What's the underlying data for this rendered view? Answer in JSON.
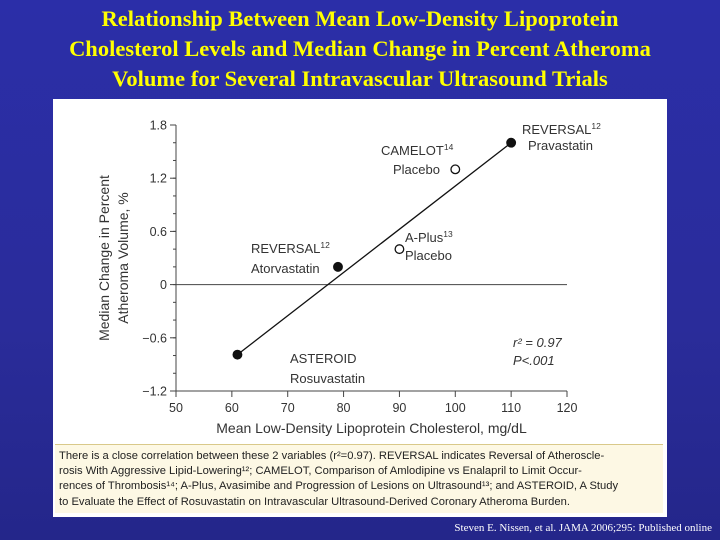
{
  "slide": {
    "title_lines": [
      "Relationship Between Mean Low-Density Lipoprotein",
      "Cholesterol Levels and Median Change in Percent Atheroma",
      "Volume for Several Intravascular Ultrasound Trials"
    ],
    "citation": "Steven E. Nissen, et al. JAMA 2006;295: Published online",
    "caption_lines": [
      "There is a close correlation between these 2 variables (r²=0.97). REVERSAL indicates Reversal of Atheroscle-",
      "rosis With Aggressive Lipid-Lowering¹²; CAMELOT, Comparison of Amlodipine vs Enalapril to Limit Occur-",
      "rences of Thrombosis¹⁴; A-Plus, Avasimibe and Progression of Lesions on Ultrasound¹³; and ASTEROID, A Study",
      "to Evaluate the Effect of Rosuvastatin on Intravascular Ultrasound-Derived Coronary Atheroma Burden."
    ]
  },
  "chart_data": {
    "type": "scatter",
    "xlabel": "Mean Low-Density Lipoprotein Cholesterol, mg/dL",
    "ylabel_lines": [
      "Median Change in Percent",
      "Atheroma Volume, %"
    ],
    "xlim": [
      50,
      120
    ],
    "ylim": [
      -1.2,
      1.8
    ],
    "xticks": [
      50,
      60,
      70,
      80,
      90,
      100,
      110,
      120
    ],
    "yticks": [
      1.8,
      1.2,
      0.6,
      0,
      -0.6,
      -1.2
    ],
    "ytick_labels": [
      "1.8",
      "1.2",
      "0.6",
      "0",
      "−0.6",
      "−1.2"
    ],
    "grid": false,
    "points": [
      {
        "name": "ASTEROID",
        "sup": "",
        "sub": "Rosuvastatin",
        "x": 61,
        "y": -0.79,
        "filled": true
      },
      {
        "name": "REVERSAL",
        "sup": "12",
        "sub": "Atorvastatin",
        "x": 79,
        "y": 0.2,
        "filled": true
      },
      {
        "name": "A-Plus",
        "sup": "13",
        "sub": "Placebo",
        "x": 90,
        "y": 0.4,
        "filled": false
      },
      {
        "name": "CAMELOT",
        "sup": "14",
        "sub": "Placebo",
        "x": 100,
        "y": 1.3,
        "filled": false
      },
      {
        "name": "REVERSAL",
        "sup": "12",
        "sub": "Pravastatin",
        "x": 110,
        "y": 1.6,
        "filled": true
      }
    ],
    "regression_line": {
      "x": [
        61,
        110
      ],
      "y": [
        -0.79,
        1.6
      ]
    },
    "stats": {
      "r2": "r² = 0.97",
      "p": "P<.001"
    }
  }
}
